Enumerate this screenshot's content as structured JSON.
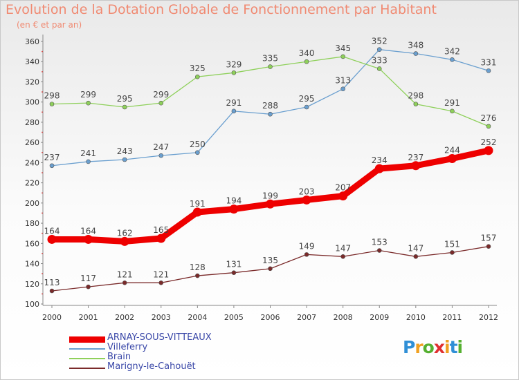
{
  "title": "Evolution de la Dotation Globale de Fonctionnement par Habitant",
  "subtitle": "(en € et par an)",
  "chart_data": {
    "type": "line",
    "categories": [
      "2000",
      "2001",
      "2002",
      "2003",
      "2004",
      "2005",
      "2006",
      "2007",
      "2008",
      "2009",
      "2010",
      "2011",
      "2012"
    ],
    "ylim": [
      100,
      360
    ],
    "yticks": [
      100,
      120,
      140,
      160,
      180,
      200,
      220,
      240,
      260,
      280,
      300,
      320,
      340,
      360
    ],
    "grid": false,
    "legend_position": "bottom-left",
    "series": [
      {
        "name": "ARNAY-SOUS-VITTEAUX",
        "color": "#ee0000",
        "emphasis": true,
        "values": [
          164,
          164,
          162,
          165,
          191,
          194,
          199,
          203,
          207,
          234,
          237,
          244,
          252
        ]
      },
      {
        "name": "Villeferry",
        "color": "#6a9fcf",
        "values": [
          237,
          241,
          243,
          247,
          250,
          291,
          288,
          295,
          313,
          352,
          348,
          342,
          331
        ]
      },
      {
        "name": "Brain",
        "color": "#8ed05a",
        "values": [
          298,
          299,
          295,
          299,
          325,
          329,
          335,
          340,
          345,
          333,
          298,
          291,
          276
        ]
      },
      {
        "name": "Marigny-le-Cahouët",
        "color": "#7a2a2a",
        "values": [
          113,
          117,
          121,
          121,
          128,
          131,
          135,
          149,
          147,
          153,
          147,
          151,
          157
        ]
      }
    ]
  },
  "logo": {
    "letters": [
      "P",
      "r",
      "o",
      "x",
      "i",
      "t",
      "i"
    ],
    "colors": [
      "#2f8fd6",
      "#f0a020",
      "#55b030",
      "#e03030",
      "#f0a020",
      "#2f8fd6",
      "#55b030"
    ]
  }
}
